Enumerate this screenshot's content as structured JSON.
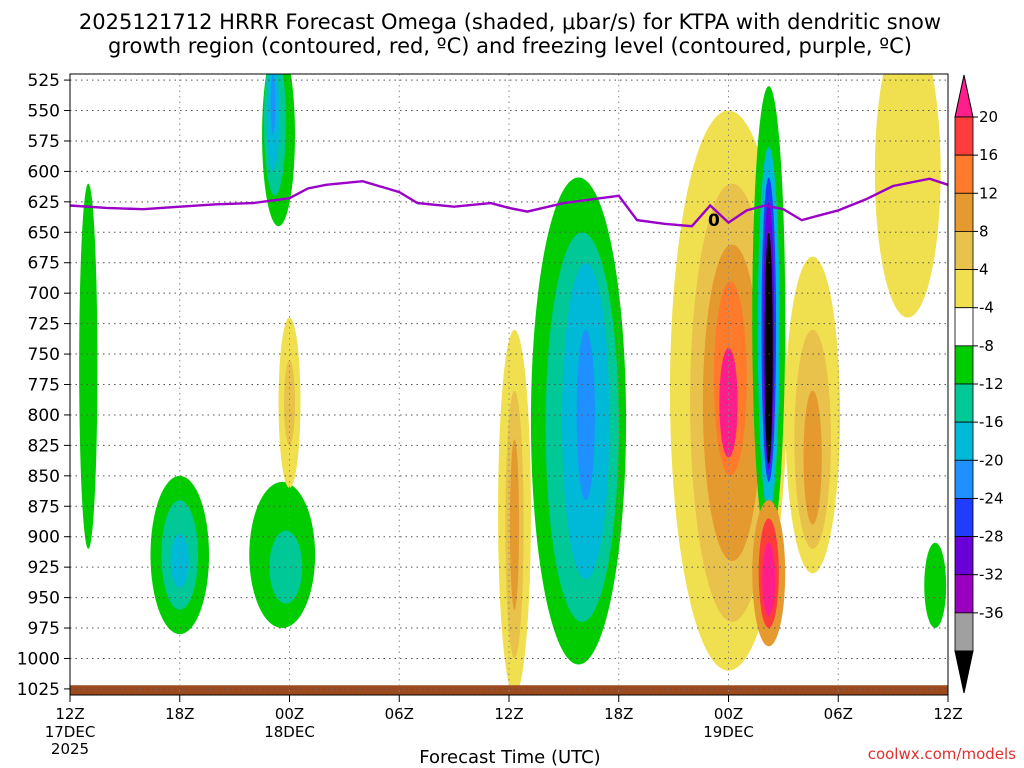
{
  "chart_data": {
    "type": "heatmap",
    "title_line1": "2025121712 HRRR Forecast Omega (shaded, μbar/s) for KTPA with dendritic snow",
    "title_line2": "growth region (contoured, red, ºC) and freezing level (contoured, purple, ºC)",
    "xlabel": "Forecast Time (UTC)",
    "credit": "coolwx.com/models",
    "x_range_hours": [
      0,
      48
    ],
    "x_ticks": [
      {
        "h": 0,
        "label": "12Z",
        "sub1": "17DEC",
        "sub2": "2025"
      },
      {
        "h": 6,
        "label": "18Z",
        "sub1": "",
        "sub2": ""
      },
      {
        "h": 12,
        "label": "00Z",
        "sub1": "18DEC",
        "sub2": ""
      },
      {
        "h": 18,
        "label": "06Z",
        "sub1": "",
        "sub2": ""
      },
      {
        "h": 24,
        "label": "12Z",
        "sub1": "",
        "sub2": ""
      },
      {
        "h": 30,
        "label": "18Z",
        "sub1": "",
        "sub2": ""
      },
      {
        "h": 36,
        "label": "00Z",
        "sub1": "19DEC",
        "sub2": ""
      },
      {
        "h": 42,
        "label": "06Z",
        "sub1": "",
        "sub2": ""
      },
      {
        "h": 48,
        "label": "12Z",
        "sub1": "",
        "sub2": ""
      }
    ],
    "y_levels": [
      525,
      550,
      575,
      600,
      625,
      650,
      675,
      700,
      725,
      750,
      775,
      800,
      825,
      850,
      875,
      900,
      925,
      950,
      975,
      1000,
      1025
    ],
    "colorbar": {
      "labels": [
        "20",
        "16",
        "12",
        "8",
        "4",
        "-4",
        "-8",
        "-12",
        "-16",
        "-20",
        "-24",
        "-28",
        "-32",
        "-36"
      ],
      "colors": [
        "#ff3c3c",
        "#ff7a2a",
        "#e49a2e",
        "#e8c24a",
        "#f0e050",
        "#ffffff",
        "#00cc00",
        "#00c896",
        "#00b8d8",
        "#1e90ff",
        "#1f3cff",
        "#6a00d8",
        "#9a00c0",
        "#a0a0a0"
      ],
      "top_arrow_color": "#ff1e8c",
      "bottom_arrow_color": "#000000"
    },
    "freezing_level": {
      "contour_label": "0",
      "color": "#9a00c8",
      "points": [
        [
          0,
          628
        ],
        [
          2,
          630
        ],
        [
          4,
          631
        ],
        [
          6,
          629
        ],
        [
          8,
          627
        ],
        [
          10,
          626
        ],
        [
          12,
          622
        ],
        [
          13,
          614
        ],
        [
          14,
          611
        ],
        [
          16,
          608
        ],
        [
          18,
          617
        ],
        [
          19,
          626
        ],
        [
          21,
          629
        ],
        [
          23,
          626
        ],
        [
          24,
          630
        ],
        [
          25,
          633
        ],
        [
          27,
          626
        ],
        [
          29,
          622
        ],
        [
          30,
          620
        ],
        [
          31,
          640
        ],
        [
          32.5,
          643
        ],
        [
          34,
          645
        ],
        [
          35,
          628
        ],
        [
          36,
          642
        ],
        [
          37,
          632
        ],
        [
          38,
          628
        ],
        [
          39,
          631
        ],
        [
          40,
          640
        ],
        [
          41,
          636
        ],
        [
          42,
          632
        ],
        [
          43.5,
          623
        ],
        [
          45,
          612
        ],
        [
          47,
          606
        ],
        [
          48,
          611
        ]
      ]
    },
    "omega_fields": [
      {
        "name": "band-early-green",
        "levels": [
          {
            "c": "#00cc00",
            "cx": 1,
            "cy": 760,
            "rx": 0.5,
            "ry": 150
          }
        ]
      },
      {
        "name": "band-18z-lower",
        "levels": [
          {
            "c": "#00cc00",
            "cx": 6,
            "cy": 915,
            "rx": 1.6,
            "ry": 65
          },
          {
            "c": "#00c896",
            "cx": 6,
            "cy": 915,
            "rx": 1.0,
            "ry": 45
          },
          {
            "c": "#00b8d8",
            "cx": 6,
            "cy": 920,
            "rx": 0.5,
            "ry": 22
          }
        ]
      },
      {
        "name": "band-00z-upper",
        "levels": [
          {
            "c": "#00cc00",
            "cx": 11.4,
            "cy": 570,
            "rx": 0.9,
            "ry": 75
          },
          {
            "c": "#00c896",
            "cx": 11.2,
            "cy": 560,
            "rx": 0.6,
            "ry": 60
          },
          {
            "c": "#00b8d8",
            "cx": 11.1,
            "cy": 555,
            "rx": 0.35,
            "ry": 45
          },
          {
            "c": "#1e90ff",
            "cx": 11.1,
            "cy": 545,
            "rx": 0.12,
            "ry": 25
          }
        ]
      },
      {
        "name": "band-00z-lower",
        "levels": [
          {
            "c": "#00cc00",
            "cx": 11.6,
            "cy": 915,
            "rx": 1.8,
            "ry": 60
          },
          {
            "c": "#00c896",
            "cx": 11.8,
            "cy": 925,
            "rx": 0.9,
            "ry": 30
          }
        ]
      },
      {
        "name": "band-00z-yellow",
        "levels": [
          {
            "c": "#f0e050",
            "cx": 12,
            "cy": 790,
            "rx": 0.6,
            "ry": 70
          },
          {
            "c": "#e8c24a",
            "cx": 12,
            "cy": 790,
            "rx": 0.3,
            "ry": 35
          }
        ]
      },
      {
        "name": "band-12z-yellow",
        "levels": [
          {
            "c": "#f0e050",
            "cx": 24.3,
            "cy": 880,
            "rx": 0.9,
            "ry": 150
          },
          {
            "c": "#e8c24a",
            "cx": 24.3,
            "cy": 890,
            "rx": 0.5,
            "ry": 110
          },
          {
            "c": "#e49a2e",
            "cx": 24.3,
            "cy": 890,
            "rx": 0.25,
            "ry": 70
          }
        ]
      },
      {
        "name": "band-15z-green",
        "levels": [
          {
            "c": "#00cc00",
            "cx": 27.8,
            "cy": 805,
            "rx": 2.6,
            "ry": 200
          },
          {
            "c": "#00c896",
            "cx": 28,
            "cy": 810,
            "rx": 2.0,
            "ry": 160
          },
          {
            "c": "#00b8d8",
            "cx": 28.2,
            "cy": 805,
            "rx": 1.3,
            "ry": 130
          },
          {
            "c": "#1e90ff",
            "cx": 28.2,
            "cy": 800,
            "rx": 0.5,
            "ry": 70
          }
        ]
      },
      {
        "name": "band-00z19-yellow",
        "levels": [
          {
            "c": "#f0e050",
            "cx": 36,
            "cy": 780,
            "rx": 3.2,
            "ry": 230
          },
          {
            "c": "#e8c24a",
            "cx": 36.2,
            "cy": 790,
            "rx": 2.3,
            "ry": 180
          },
          {
            "c": "#e49a2e",
            "cx": 36.2,
            "cy": 790,
            "rx": 1.6,
            "ry": 130
          },
          {
            "c": "#ff7a2a",
            "cx": 36.1,
            "cy": 770,
            "rx": 0.9,
            "ry": 80
          },
          {
            "c": "#ff1e8c",
            "cx": 36,
            "cy": 790,
            "rx": 0.5,
            "ry": 45
          }
        ]
      },
      {
        "name": "band-00z19-core",
        "levels": [
          {
            "c": "#00cc00",
            "cx": 38.2,
            "cy": 720,
            "rx": 0.9,
            "ry": 190
          },
          {
            "c": "#00b8d8",
            "cx": 38.2,
            "cy": 730,
            "rx": 0.6,
            "ry": 150
          },
          {
            "c": "#1f3cff",
            "cx": 38.2,
            "cy": 730,
            "rx": 0.4,
            "ry": 125
          },
          {
            "c": "#6a00d8",
            "cx": 38.2,
            "cy": 735,
            "rx": 0.3,
            "ry": 110
          },
          {
            "c": "#000000",
            "cx": 38.2,
            "cy": 745,
            "rx": 0.22,
            "ry": 95
          }
        ]
      },
      {
        "name": "band-00z19-lower-pink",
        "levels": [
          {
            "c": "#e49a2e",
            "cx": 38.2,
            "cy": 930,
            "rx": 0.9,
            "ry": 60
          },
          {
            "c": "#ff3c3c",
            "cx": 38.2,
            "cy": 930,
            "rx": 0.55,
            "ry": 45
          },
          {
            "c": "#ff1e8c",
            "cx": 38.2,
            "cy": 935,
            "rx": 0.35,
            "ry": 30
          }
        ]
      },
      {
        "name": "band-03z-orange",
        "levels": [
          {
            "c": "#f0e050",
            "cx": 40.6,
            "cy": 800,
            "rx": 1.5,
            "ry": 130
          },
          {
            "c": "#e8c24a",
            "cx": 40.6,
            "cy": 820,
            "rx": 1.0,
            "ry": 90
          },
          {
            "c": "#e49a2e",
            "cx": 40.6,
            "cy": 835,
            "rx": 0.5,
            "ry": 55
          }
        ]
      },
      {
        "name": "band-late-yellow",
        "levels": [
          {
            "c": "#f0e050",
            "cx": 45.8,
            "cy": 600,
            "rx": 1.8,
            "ry": 120
          }
        ]
      },
      {
        "name": "band-late-green",
        "levels": [
          {
            "c": "#00cc00",
            "cx": 47.3,
            "cy": 940,
            "rx": 0.6,
            "ry": 35
          }
        ]
      }
    ]
  }
}
